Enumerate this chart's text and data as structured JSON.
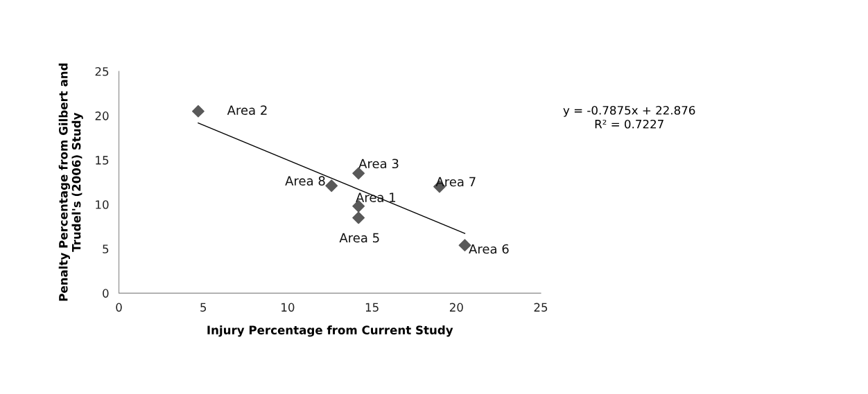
{
  "chart_data": {
    "type": "scatter",
    "xlabel": "Injury Percentage from Current Study",
    "ylabel": "Penalty Percentage from Gilbert and\nTrudel's (2006) Study",
    "xlim": [
      0,
      25
    ],
    "xticks": [
      0,
      5,
      10,
      15,
      20,
      25
    ],
    "ylim": [
      0,
      25
    ],
    "yticks": [
      0,
      5,
      10,
      15,
      20,
      25
    ],
    "grid": false,
    "marker": "diamond",
    "series": [
      {
        "color": "#595959",
        "x": [
          14.2,
          4.7,
          14.2,
          14.2,
          20.5,
          19.0,
          12.6
        ],
        "values": [
          9.8,
          20.5,
          13.5,
          8.5,
          5.4,
          12.0,
          12.1
        ]
      },
      {
        "type": "line",
        "color": "#000000",
        "x": [
          4.7,
          20.5
        ],
        "values": [
          19.17,
          6.73
        ],
        "marker": "none"
      }
    ],
    "annotations": [
      {
        "text": "Area 1",
        "x": 14.2,
        "y": 9.8
      },
      {
        "text": "Area 2",
        "x": 4.7,
        "y": 20.5
      },
      {
        "text": "Area 3",
        "x": 14.2,
        "y": 13.5
      },
      {
        "text": "Area 5",
        "x": 14.2,
        "y": 8.5
      },
      {
        "text": "Area 6",
        "x": 20.5,
        "y": 5.4
      },
      {
        "text": "Area 7",
        "x": 19.0,
        "y": 12.0
      },
      {
        "text": "Area 8",
        "x": 12.6,
        "y": 12.1
      },
      "y = -0.7875x + 22.876\nR² = 0.7227"
    ]
  }
}
